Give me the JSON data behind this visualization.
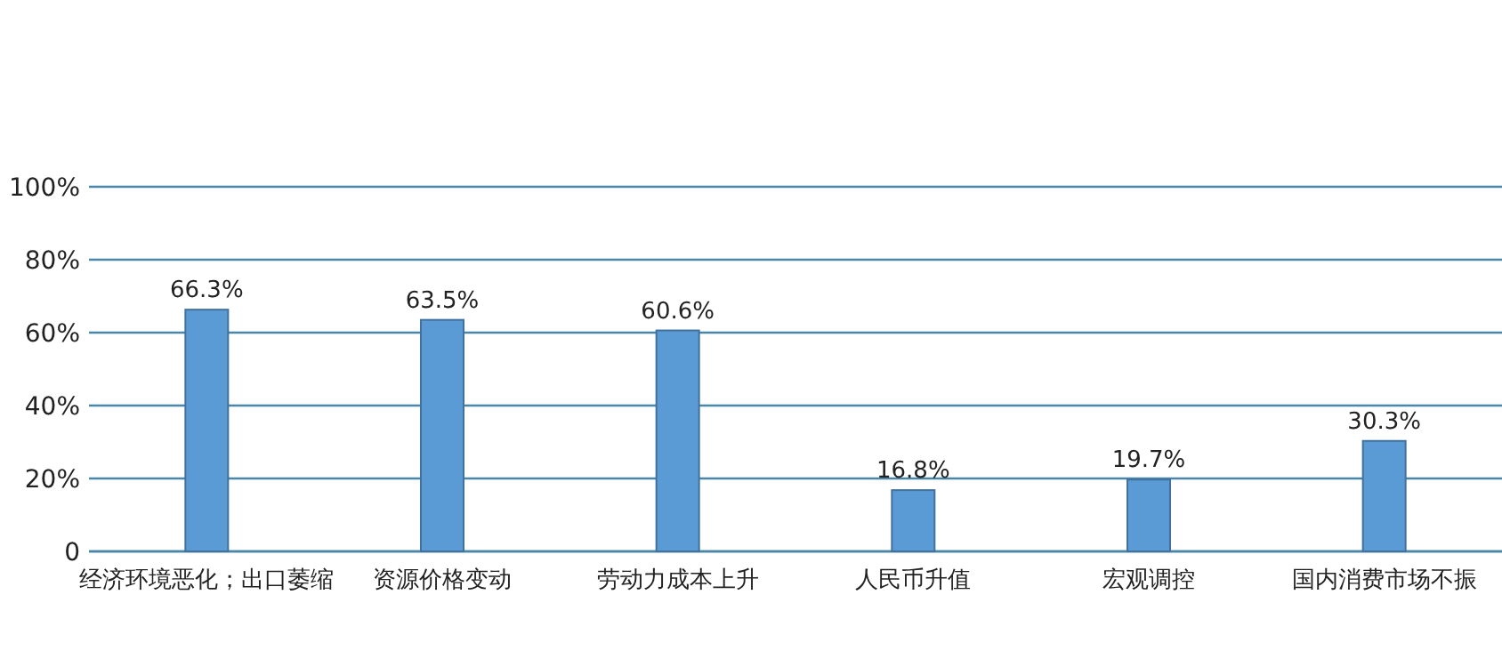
{
  "chart_data": {
    "type": "bar",
    "categories": [
      "经济环境恶化；出口萎缩",
      "资源价格变动",
      "劳动力成本上升",
      "人民币升值",
      "宏观调控",
      "国内消费市场不振"
    ],
    "values": [
      66.3,
      63.5,
      60.6,
      16.8,
      19.7,
      30.3
    ],
    "value_labels": [
      "66.3%",
      "63.5%",
      "60.6%",
      "16.8%",
      "19.7%",
      "30.3%"
    ],
    "color": "#5b9bd5",
    "ylim": [
      0,
      100
    ],
    "yticks": [
      0,
      {
        "value": 20,
        "label": "20%"
      },
      {
        "value": 40,
        "label": "40%"
      },
      {
        "value": 60,
        "label": "60%"
      },
      {
        "value": 80,
        "label": "80%"
      },
      {
        "value": 100,
        "label": "100%"
      }
    ],
    "grid": "y"
  }
}
